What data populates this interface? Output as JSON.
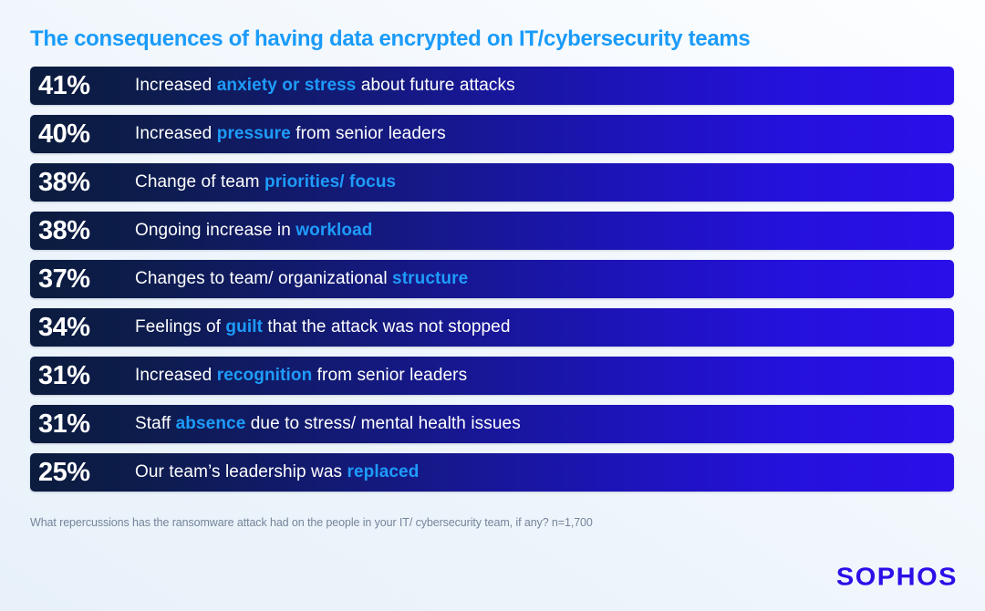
{
  "page": {
    "title": "The consequences of having data encrypted on IT/cybersecurity teams",
    "footnote": "What repercussions has the ransomware attack had on the people in your IT/ cybersecurity team, if any? n=1,700",
    "logo_text": "SOPHOS"
  },
  "colors": {
    "title_color": "#1A9BFA",
    "highlight_color": "#1E9CFA",
    "bar_start": "#0B1C3E",
    "bar_end": "#2A0FE9",
    "logo_color": "#2B0FE8",
    "footnote_color": "#75849B"
  },
  "bars": [
    {
      "pct": "41%",
      "pre": "Increased ",
      "highlight": "anxiety or stress",
      "post": " about future attacks"
    },
    {
      "pct": "40%",
      "pre": "Increased ",
      "highlight": "pressure",
      "post": " from senior leaders"
    },
    {
      "pct": "38%",
      "pre": "Change of team ",
      "highlight": "priorities/ focus",
      "post": ""
    },
    {
      "pct": "38%",
      "pre": "Ongoing increase in ",
      "highlight": "workload",
      "post": ""
    },
    {
      "pct": "37%",
      "pre": "Changes to team/ organizational ",
      "highlight": "structure",
      "post": ""
    },
    {
      "pct": "34%",
      "pre": "Feelings of ",
      "highlight": "guilt",
      "post": " that the attack was not stopped"
    },
    {
      "pct": "31%",
      "pre": "Increased ",
      "highlight": "recognition",
      "post": " from senior leaders"
    },
    {
      "pct": "31%",
      "pre": "Staff ",
      "highlight": "absence",
      "post": " due to stress/ mental health issues"
    },
    {
      "pct": "25%",
      "pre": "Our team’s leadership was ",
      "highlight": "replaced",
      "post": ""
    }
  ],
  "chart_data": {
    "type": "bar",
    "orientation": "horizontal",
    "title": "The consequences of having data encrypted on IT/cybersecurity teams",
    "categories": [
      "Increased anxiety or stress about future attacks",
      "Increased pressure from senior leaders",
      "Change of team priorities/ focus",
      "Ongoing increase in workload",
      "Changes to team/ organizational structure",
      "Feelings of guilt that the attack was not stopped",
      "Increased recognition from senior leaders",
      "Staff absence due to stress/ mental health issues",
      "Our team’s leadership was replaced"
    ],
    "values": [
      41,
      40,
      38,
      38,
      37,
      34,
      31,
      31,
      25
    ],
    "unit": "%",
    "xlabel": "",
    "ylabel": "",
    "legend": "none",
    "grid": "off",
    "source_note": "What repercussions has the ransomware attack had on the people in your IT/ cybersecurity team, if any? n=1,700",
    "brand": "SOPHOS"
  }
}
